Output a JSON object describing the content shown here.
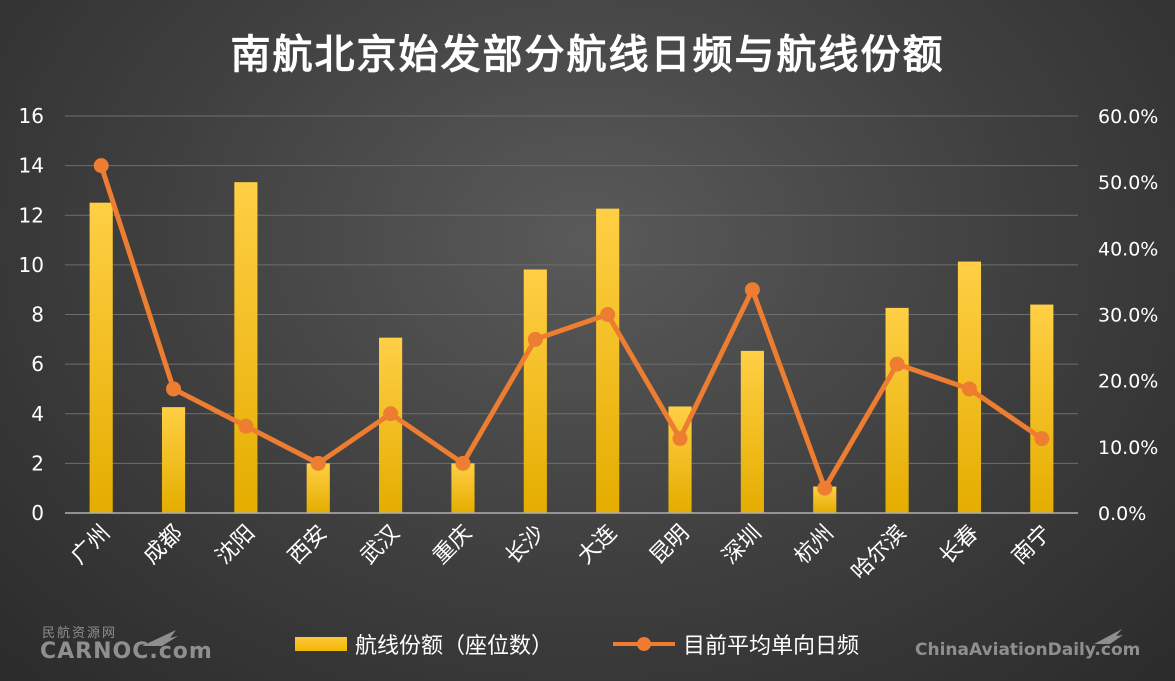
{
  "chart_data": {
    "type": "bar",
    "title": "南航北京始发部分航线日频与航线份额",
    "categories": [
      "广州",
      "成都",
      "沈阳",
      "西安",
      "武汉",
      "重庆",
      "长沙",
      "大连",
      "昆明",
      "深圳",
      "杭州",
      "哈尔滨",
      "长春",
      "南宁"
    ],
    "series": [
      {
        "name": "航线份额（座位数）",
        "type": "bar",
        "axis": "right",
        "values": [
          46.9,
          16.0,
          50.0,
          7.5,
          26.5,
          7.5,
          36.8,
          46.0,
          16.1,
          24.5,
          4.0,
          31.0,
          38.0,
          31.5
        ],
        "color": "#ffc000"
      },
      {
        "name": "目前平均单向日频",
        "type": "line",
        "axis": "left",
        "values": [
          14.0,
          5.0,
          3.5,
          2.0,
          4.0,
          2.0,
          7.0,
          8.0,
          3.0,
          9.0,
          1.0,
          6.0,
          5.0,
          3.0
        ],
        "color": "#ed7d31"
      }
    ],
    "y_left": {
      "ylim": [
        0,
        16
      ],
      "ticks": [
        "0",
        "2",
        "4",
        "6",
        "8",
        "10",
        "12",
        "14",
        "16"
      ]
    },
    "y_right": {
      "ylim": [
        0,
        60
      ],
      "ticks": [
        "0.0%",
        "10.0%",
        "20.0%",
        "30.0%",
        "40.0%",
        "50.0%",
        "60.0%"
      ]
    },
    "grid": true,
    "legend_position": "bottom"
  },
  "watermark_left": {
    "cn": "民航资源网",
    "en": "CARNOC.com"
  },
  "watermark_right": "ChinaAviationDaily.com"
}
